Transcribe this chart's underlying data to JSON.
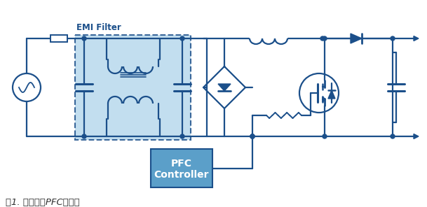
{
  "bg_color": "#ffffff",
  "line_color": "#1b4f8a",
  "fill_color": "#b8d9ed",
  "pfc_box_fill": "#5b9fc9",
  "pfc_box_edge": "#1b4f8a",
  "text_color": "#1b4f8a",
  "caption_color": "#333333",
  "emi_label": "EMI Filter",
  "pfc_label_1": "PFC",
  "pfc_label_2": "Controller",
  "caption": "图1. 单相升压PFC电路。",
  "fig_width": 6.09,
  "fig_height": 2.96,
  "dpi": 100
}
